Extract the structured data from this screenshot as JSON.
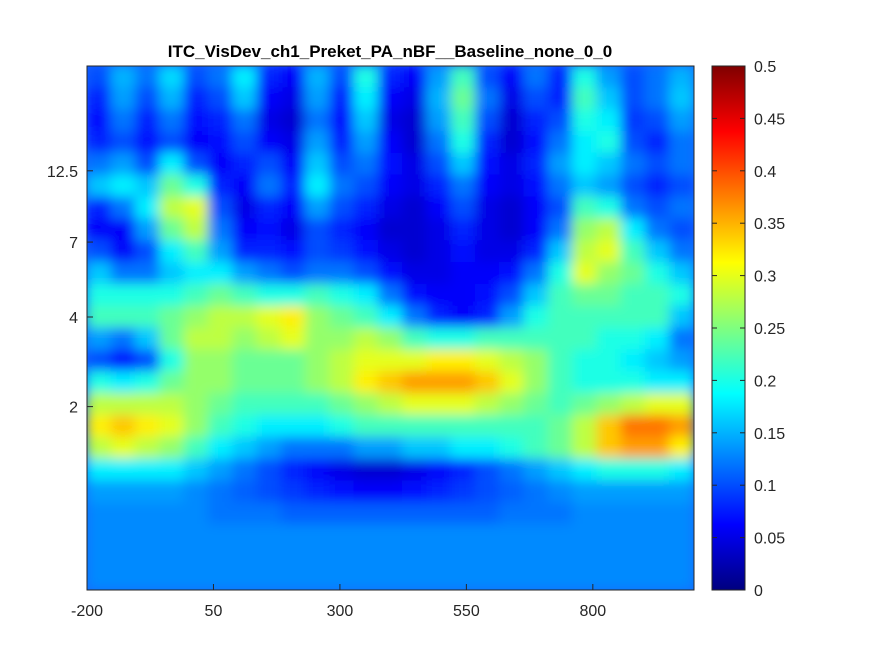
{
  "chart_data": {
    "type": "heatmap",
    "title": "ITC_VisDev_ch1_Preket_PA_nBF__Baseline_none_0_0",
    "xlabel": "",
    "ylabel": "",
    "x_ticks": [
      -200,
      50,
      300,
      550,
      800
    ],
    "xlim": [
      -200,
      1000
    ],
    "y_ticks": [
      "12.5",
      "7",
      "4",
      "2"
    ],
    "colormap": "jet",
    "colorbar": {
      "min": 0,
      "max": 0.5,
      "ticks": [
        "0",
        "0.05",
        "0.1",
        "0.15",
        "0.2",
        "0.25",
        "0.3",
        "0.35",
        "0.4",
        "0.45",
        "0.5"
      ]
    },
    "grid": false,
    "values": [
      [
        0.1,
        0.15,
        0.12,
        0.17,
        0.1,
        0.12,
        0.18,
        0.08,
        0.06,
        0.15,
        0.1,
        0.2,
        0.08,
        0.06,
        0.14,
        0.22,
        0.1,
        0.06,
        0.12,
        0.08,
        0.2,
        0.14,
        0.1,
        0.12,
        0.15
      ],
      [
        0.08,
        0.14,
        0.1,
        0.15,
        0.08,
        0.1,
        0.16,
        0.06,
        0.05,
        0.14,
        0.08,
        0.18,
        0.06,
        0.05,
        0.15,
        0.24,
        0.12,
        0.05,
        0.1,
        0.08,
        0.22,
        0.16,
        0.1,
        0.12,
        0.16
      ],
      [
        0.07,
        0.12,
        0.08,
        0.12,
        0.07,
        0.08,
        0.12,
        0.05,
        0.04,
        0.12,
        0.07,
        0.16,
        0.05,
        0.04,
        0.14,
        0.22,
        0.1,
        0.04,
        0.08,
        0.1,
        0.2,
        0.18,
        0.09,
        0.1,
        0.14
      ],
      [
        0.08,
        0.1,
        0.07,
        0.1,
        0.06,
        0.07,
        0.1,
        0.06,
        0.05,
        0.14,
        0.08,
        0.14,
        0.06,
        0.04,
        0.12,
        0.2,
        0.08,
        0.04,
        0.07,
        0.12,
        0.18,
        0.2,
        0.1,
        0.08,
        0.12
      ],
      [
        0.12,
        0.14,
        0.1,
        0.18,
        0.1,
        0.06,
        0.08,
        0.1,
        0.06,
        0.16,
        0.1,
        0.12,
        0.07,
        0.05,
        0.1,
        0.16,
        0.07,
        0.05,
        0.08,
        0.14,
        0.18,
        0.16,
        0.12,
        0.1,
        0.12
      ],
      [
        0.16,
        0.18,
        0.16,
        0.24,
        0.2,
        0.08,
        0.06,
        0.12,
        0.08,
        0.18,
        0.12,
        0.1,
        0.06,
        0.05,
        0.08,
        0.12,
        0.06,
        0.05,
        0.07,
        0.12,
        0.16,
        0.14,
        0.1,
        0.08,
        0.1
      ],
      [
        0.08,
        0.12,
        0.18,
        0.28,
        0.3,
        0.1,
        0.05,
        0.08,
        0.06,
        0.14,
        0.1,
        0.08,
        0.05,
        0.04,
        0.06,
        0.1,
        0.05,
        0.04,
        0.06,
        0.1,
        0.22,
        0.2,
        0.12,
        0.1,
        0.12
      ],
      [
        0.06,
        0.06,
        0.14,
        0.24,
        0.28,
        0.12,
        0.06,
        0.07,
        0.05,
        0.1,
        0.08,
        0.06,
        0.04,
        0.04,
        0.05,
        0.08,
        0.05,
        0.04,
        0.06,
        0.12,
        0.26,
        0.28,
        0.18,
        0.12,
        0.1
      ],
      [
        0.1,
        0.06,
        0.1,
        0.18,
        0.22,
        0.14,
        0.08,
        0.08,
        0.07,
        0.1,
        0.09,
        0.07,
        0.05,
        0.04,
        0.05,
        0.07,
        0.05,
        0.05,
        0.08,
        0.16,
        0.28,
        0.3,
        0.22,
        0.16,
        0.12
      ],
      [
        0.16,
        0.12,
        0.12,
        0.16,
        0.18,
        0.18,
        0.14,
        0.12,
        0.1,
        0.12,
        0.12,
        0.1,
        0.07,
        0.05,
        0.05,
        0.06,
        0.06,
        0.07,
        0.12,
        0.2,
        0.3,
        0.26,
        0.24,
        0.2,
        0.16
      ],
      [
        0.2,
        0.2,
        0.2,
        0.2,
        0.22,
        0.24,
        0.22,
        0.2,
        0.2,
        0.22,
        0.2,
        0.18,
        0.12,
        0.07,
        0.06,
        0.06,
        0.07,
        0.1,
        0.16,
        0.22,
        0.24,
        0.24,
        0.22,
        0.22,
        0.2
      ],
      [
        0.22,
        0.22,
        0.22,
        0.24,
        0.26,
        0.28,
        0.28,
        0.3,
        0.32,
        0.26,
        0.24,
        0.22,
        0.18,
        0.12,
        0.08,
        0.06,
        0.08,
        0.14,
        0.2,
        0.22,
        0.22,
        0.22,
        0.22,
        0.22,
        0.16
      ],
      [
        0.14,
        0.12,
        0.16,
        0.24,
        0.28,
        0.28,
        0.26,
        0.28,
        0.3,
        0.26,
        0.26,
        0.28,
        0.26,
        0.22,
        0.2,
        0.2,
        0.22,
        0.22,
        0.22,
        0.22,
        0.22,
        0.2,
        0.2,
        0.18,
        0.12
      ],
      [
        0.1,
        0.07,
        0.1,
        0.2,
        0.26,
        0.26,
        0.24,
        0.24,
        0.24,
        0.26,
        0.28,
        0.3,
        0.3,
        0.3,
        0.32,
        0.32,
        0.3,
        0.28,
        0.26,
        0.22,
        0.2,
        0.2,
        0.18,
        0.16,
        0.14
      ],
      [
        0.2,
        0.18,
        0.2,
        0.24,
        0.26,
        0.26,
        0.24,
        0.24,
        0.24,
        0.26,
        0.28,
        0.32,
        0.34,
        0.36,
        0.36,
        0.36,
        0.34,
        0.3,
        0.26,
        0.22,
        0.2,
        0.2,
        0.2,
        0.18,
        0.18
      ],
      [
        0.28,
        0.28,
        0.28,
        0.28,
        0.26,
        0.24,
        0.22,
        0.22,
        0.22,
        0.22,
        0.24,
        0.26,
        0.28,
        0.3,
        0.3,
        0.3,
        0.28,
        0.26,
        0.24,
        0.22,
        0.24,
        0.26,
        0.28,
        0.3,
        0.3
      ],
      [
        0.32,
        0.34,
        0.32,
        0.3,
        0.26,
        0.22,
        0.2,
        0.18,
        0.18,
        0.18,
        0.2,
        0.22,
        0.22,
        0.22,
        0.22,
        0.22,
        0.22,
        0.22,
        0.22,
        0.24,
        0.28,
        0.34,
        0.38,
        0.38,
        0.36
      ],
      [
        0.28,
        0.3,
        0.28,
        0.26,
        0.22,
        0.18,
        0.16,
        0.14,
        0.12,
        0.12,
        0.12,
        0.14,
        0.14,
        0.16,
        0.16,
        0.18,
        0.18,
        0.2,
        0.22,
        0.24,
        0.28,
        0.34,
        0.36,
        0.36,
        0.32
      ],
      [
        0.18,
        0.18,
        0.18,
        0.18,
        0.16,
        0.14,
        0.12,
        0.1,
        0.08,
        0.06,
        0.05,
        0.04,
        0.04,
        0.05,
        0.06,
        0.08,
        0.1,
        0.12,
        0.14,
        0.16,
        0.18,
        0.2,
        0.2,
        0.2,
        0.18
      ],
      [
        0.14,
        0.14,
        0.14,
        0.14,
        0.13,
        0.12,
        0.11,
        0.1,
        0.09,
        0.08,
        0.07,
        0.06,
        0.06,
        0.07,
        0.08,
        0.09,
        0.1,
        0.11,
        0.12,
        0.13,
        0.14,
        0.14,
        0.14,
        0.14,
        0.14
      ],
      [
        0.13,
        0.13,
        0.13,
        0.13,
        0.13,
        0.12,
        0.12,
        0.12,
        0.11,
        0.11,
        0.11,
        0.11,
        0.11,
        0.11,
        0.11,
        0.11,
        0.11,
        0.12,
        0.12,
        0.12,
        0.13,
        0.13,
        0.13,
        0.13,
        0.13
      ],
      [
        0.13,
        0.13,
        0.13,
        0.13,
        0.13,
        0.13,
        0.13,
        0.13,
        0.13,
        0.13,
        0.13,
        0.13,
        0.13,
        0.13,
        0.13,
        0.13,
        0.13,
        0.13,
        0.13,
        0.13,
        0.13,
        0.13,
        0.13,
        0.13,
        0.13
      ],
      [
        0.13,
        0.13,
        0.13,
        0.13,
        0.13,
        0.13,
        0.13,
        0.13,
        0.13,
        0.13,
        0.13,
        0.13,
        0.13,
        0.13,
        0.13,
        0.13,
        0.13,
        0.13,
        0.13,
        0.13,
        0.13,
        0.13,
        0.13,
        0.13,
        0.13
      ],
      [
        0.13,
        0.13,
        0.13,
        0.13,
        0.13,
        0.13,
        0.13,
        0.13,
        0.13,
        0.13,
        0.13,
        0.13,
        0.13,
        0.13,
        0.13,
        0.13,
        0.13,
        0.13,
        0.13,
        0.13,
        0.13,
        0.13,
        0.13,
        0.13,
        0.13
      ]
    ]
  }
}
